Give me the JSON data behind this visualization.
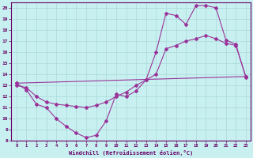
{
  "xlabel": "Windchill (Refroidissement éolien,°C)",
  "bg_color": "#c8f0f0",
  "line_color": "#993399",
  "grid_color": "#aad8d8",
  "axis_color": "#660066",
  "xlim": [
    -0.5,
    23.5
  ],
  "ylim": [
    8,
    20.5
  ],
  "yticks": [
    8,
    9,
    10,
    11,
    12,
    13,
    14,
    15,
    16,
    17,
    18,
    19,
    20
  ],
  "xticks": [
    0,
    1,
    2,
    3,
    4,
    5,
    6,
    7,
    8,
    9,
    10,
    11,
    12,
    13,
    14,
    15,
    16,
    17,
    18,
    19,
    20,
    21,
    22,
    23
  ],
  "line1_x": [
    0,
    1,
    2,
    3,
    4,
    5,
    6,
    7,
    8,
    9,
    10,
    11,
    12,
    13,
    14,
    15,
    16,
    17,
    18,
    19,
    20,
    21,
    22,
    23
  ],
  "line1_y": [
    13.2,
    12.6,
    11.3,
    11.0,
    10.0,
    9.3,
    8.7,
    8.3,
    8.5,
    9.8,
    12.2,
    12.0,
    12.5,
    13.5,
    16.0,
    19.5,
    19.3,
    18.5,
    20.2,
    20.2,
    20.0,
    17.1,
    16.7,
    13.7
  ],
  "line2_x": [
    0,
    1,
    2,
    3,
    4,
    5,
    6,
    7,
    8,
    9,
    10,
    11,
    12,
    13,
    14,
    15,
    16,
    17,
    18,
    19,
    20,
    21,
    22,
    23
  ],
  "line2_y": [
    13.0,
    12.8,
    12.0,
    11.5,
    11.3,
    11.2,
    11.1,
    11.0,
    11.2,
    11.5,
    12.0,
    12.4,
    13.0,
    13.5,
    14.0,
    16.3,
    16.6,
    17.0,
    17.2,
    17.5,
    17.2,
    16.8,
    16.6,
    13.8
  ],
  "line3_x": [
    0,
    23
  ],
  "line3_y": [
    13.2,
    13.8
  ]
}
